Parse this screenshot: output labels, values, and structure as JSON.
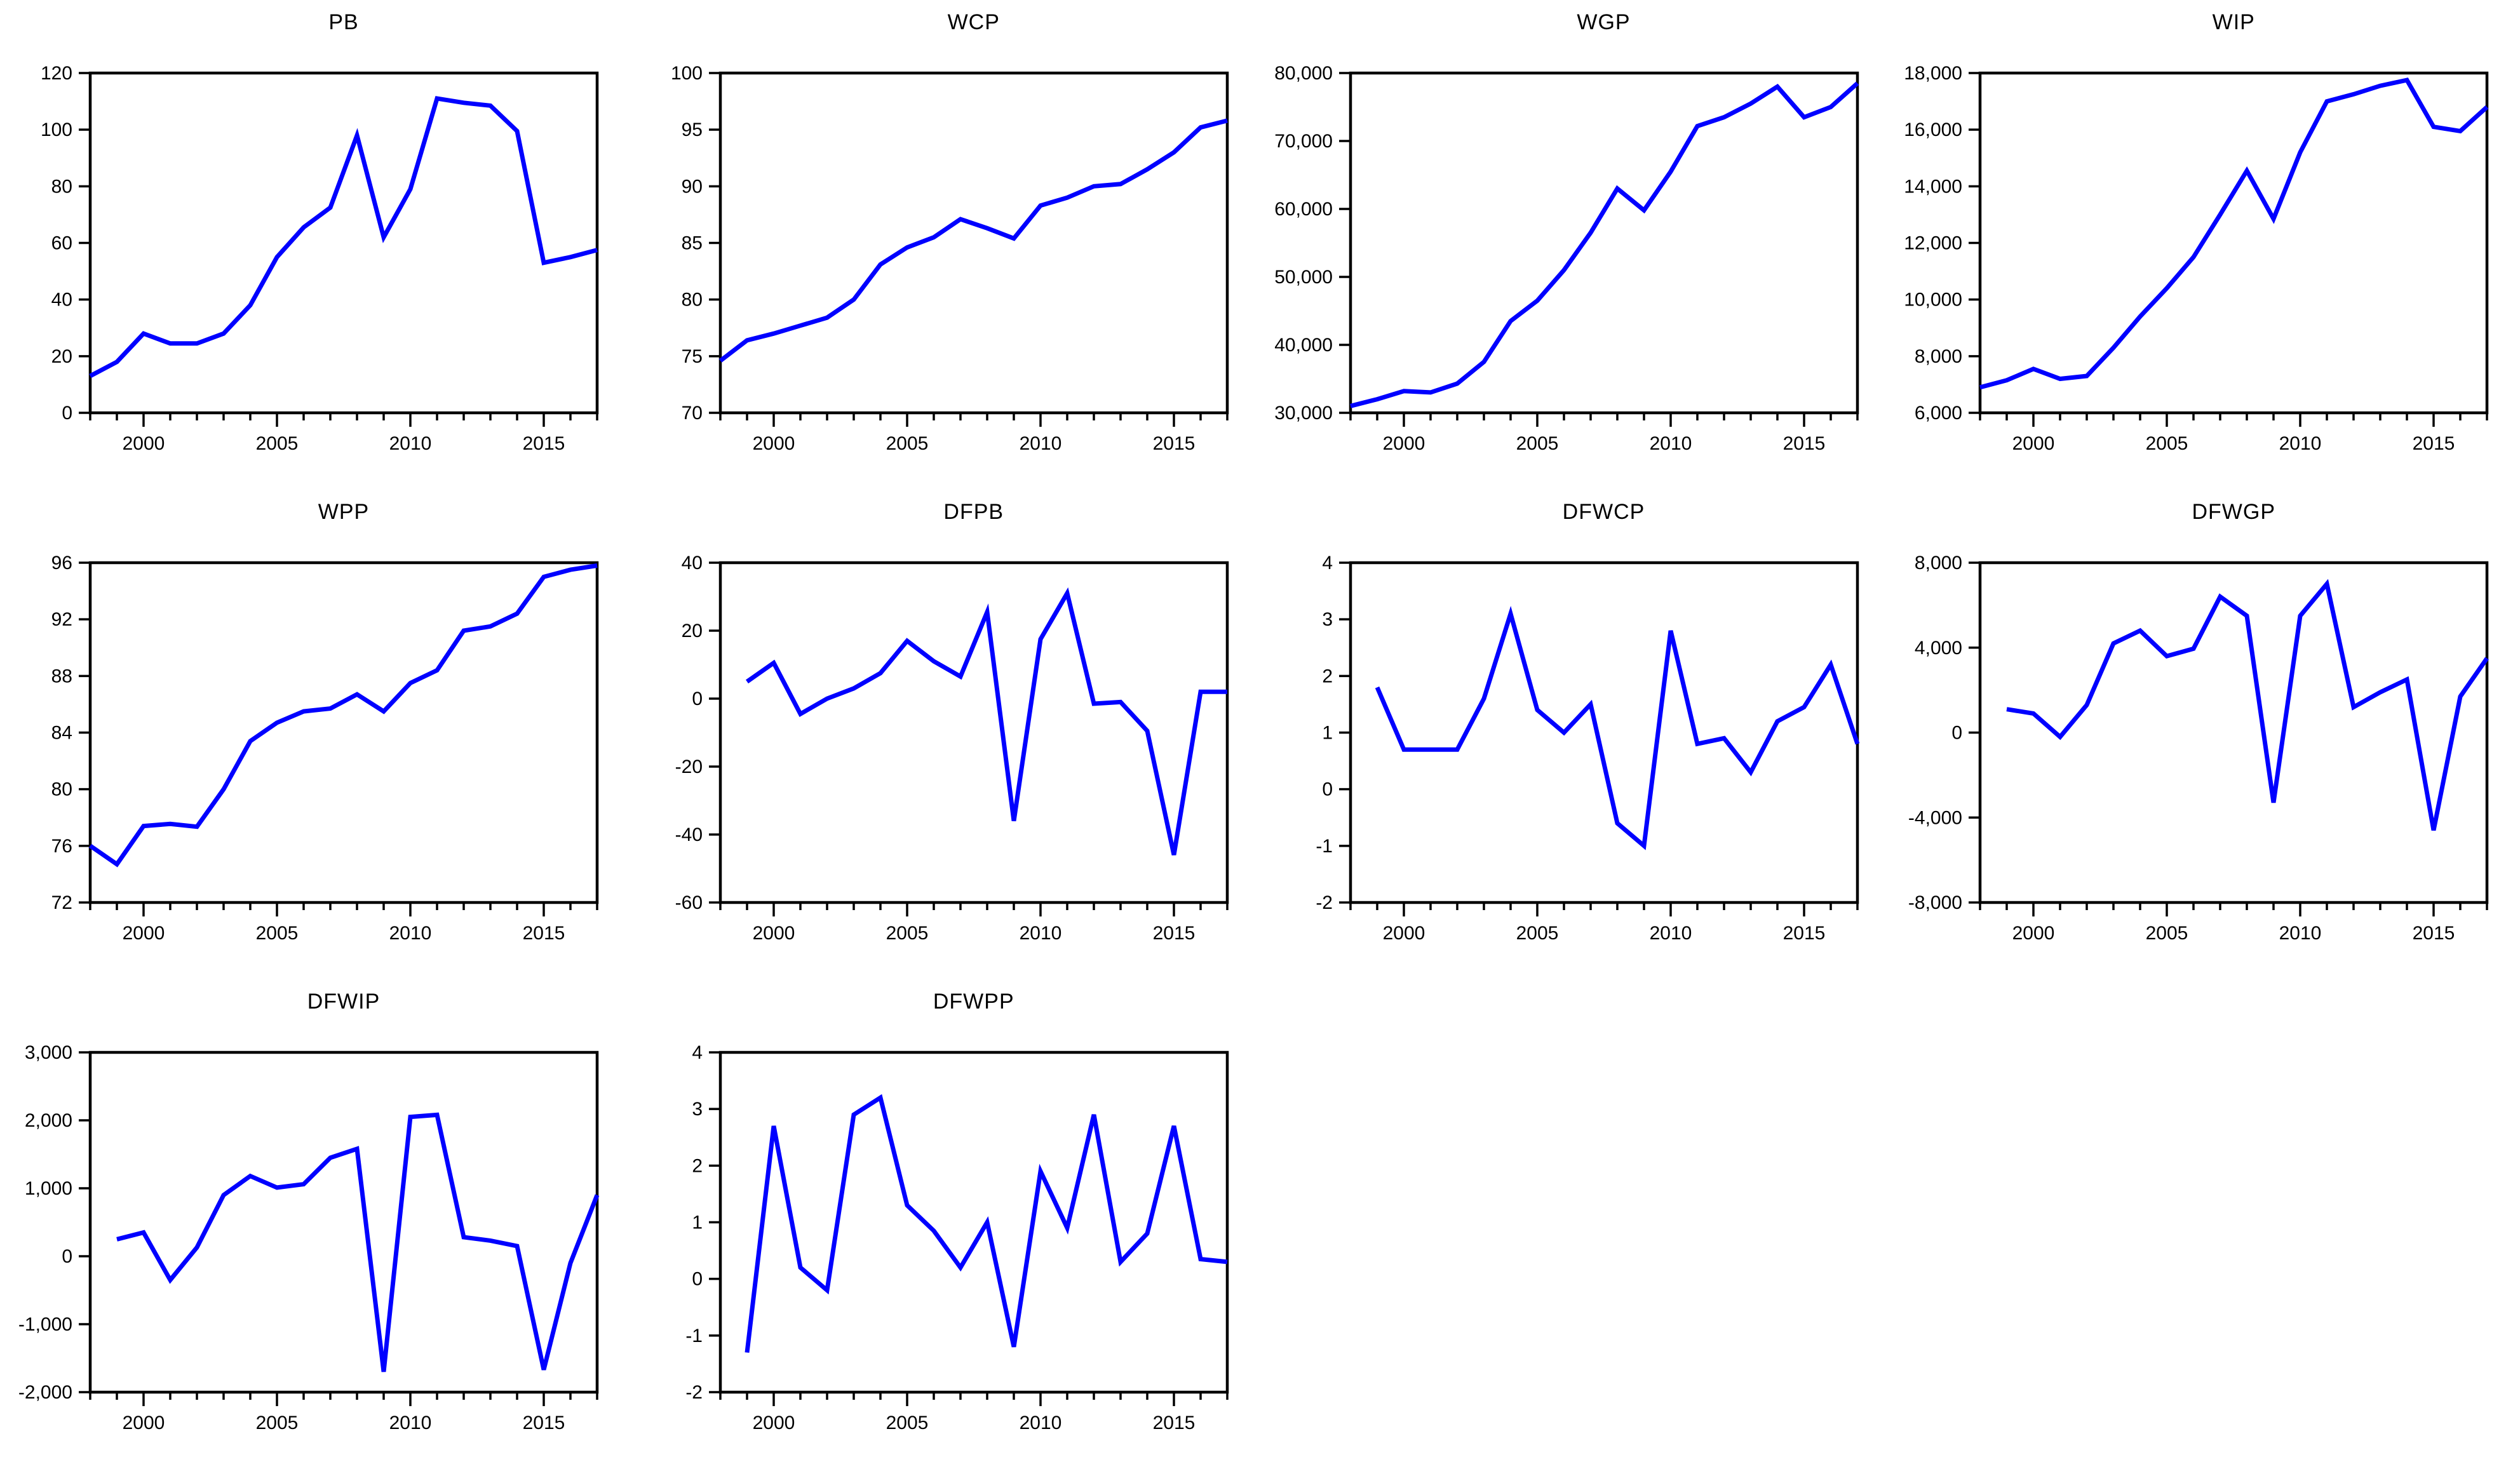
{
  "figure": {
    "background_color": "#ffffff",
    "line_color": "#0000ff",
    "axis_color": "#000000",
    "text_color": "#000000",
    "x_axis_start": 1998,
    "x_axis_end": 2017,
    "x_major_tick_labels": [
      "2000",
      "2005",
      "2010",
      "2015"
    ]
  },
  "chart_data": [
    {
      "type": "line",
      "title": "PB",
      "x_major_ticks": [
        2000,
        2005,
        2010,
        2015
      ],
      "x_tick_labels": [
        "2000",
        "2005",
        "2010",
        "2015"
      ],
      "ylim": [
        0,
        120
      ],
      "y_ticks": [
        0,
        20,
        40,
        60,
        80,
        100,
        120
      ],
      "y_tick_labels": [
        "0",
        "20",
        "40",
        "60",
        "80",
        "100",
        "120"
      ],
      "x": [
        1998,
        1999,
        2000,
        2001,
        2002,
        2003,
        2004,
        2005,
        2006,
        2007,
        2008,
        2009,
        2010,
        2011,
        2012,
        2013,
        2014,
        2015,
        2016,
        2017
      ],
      "values": [
        13,
        18,
        28,
        24.5,
        24.5,
        28,
        38,
        55,
        65.5,
        72.5,
        98,
        62,
        79,
        111,
        109.5,
        108.5,
        99.5,
        53,
        55,
        57.5
      ]
    },
    {
      "type": "line",
      "title": "WCP",
      "x_major_ticks": [
        2000,
        2005,
        2010,
        2015
      ],
      "x_tick_labels": [
        "2000",
        "2005",
        "2010",
        "2015"
      ],
      "ylim": [
        70,
        100
      ],
      "y_ticks": [
        70,
        75,
        80,
        85,
        90,
        95,
        100
      ],
      "y_tick_labels": [
        "70",
        "75",
        "80",
        "85",
        "90",
        "95",
        "100"
      ],
      "x": [
        1998,
        1999,
        2000,
        2001,
        2002,
        2003,
        2004,
        2005,
        2006,
        2007,
        2008,
        2009,
        2010,
        2011,
        2012,
        2013,
        2014,
        2015,
        2016,
        2017
      ],
      "values": [
        74.6,
        76.4,
        77.0,
        77.7,
        78.4,
        80.0,
        83.1,
        84.6,
        85.5,
        87.1,
        86.3,
        85.4,
        88.3,
        89.0,
        90.0,
        90.2,
        91.5,
        93.0,
        95.2,
        95.8
      ]
    },
    {
      "type": "line",
      "title": "WGP",
      "x_major_ticks": [
        2000,
        2005,
        2010,
        2015
      ],
      "x_tick_labels": [
        "2000",
        "2005",
        "2010",
        "2015"
      ],
      "ylim": [
        30000,
        80000
      ],
      "y_ticks": [
        30000,
        40000,
        50000,
        60000,
        70000,
        80000
      ],
      "y_tick_labels": [
        "30,000",
        "40,000",
        "50,000",
        "60,000",
        "70,000",
        "80,000"
      ],
      "x": [
        1998,
        1999,
        2000,
        2001,
        2002,
        2003,
        2004,
        2005,
        2006,
        2007,
        2008,
        2009,
        2010,
        2011,
        2012,
        2013,
        2014,
        2015,
        2016,
        2017
      ],
      "values": [
        31000,
        32000,
        33200,
        33000,
        34300,
        37500,
        43500,
        46500,
        51000,
        56500,
        63000,
        59800,
        65500,
        72200,
        73500,
        75500,
        78000,
        73500,
        75000,
        78500
      ]
    },
    {
      "type": "line",
      "title": "WIP",
      "x_major_ticks": [
        2000,
        2005,
        2010,
        2015
      ],
      "x_tick_labels": [
        "2000",
        "2005",
        "2010",
        "2015"
      ],
      "ylim": [
        6000,
        18000
      ],
      "y_ticks": [
        6000,
        8000,
        10000,
        12000,
        14000,
        16000,
        18000
      ],
      "y_tick_labels": [
        "6,000",
        "8,000",
        "10,000",
        "12,000",
        "14,000",
        "16,000",
        "18,000"
      ],
      "x": [
        1998,
        1999,
        2000,
        2001,
        2002,
        2003,
        2004,
        2005,
        2006,
        2007,
        2008,
        2009,
        2010,
        2011,
        2012,
        2013,
        2014,
        2015,
        2016,
        2017
      ],
      "values": [
        6900,
        7150,
        7550,
        7200,
        7300,
        8300,
        9400,
        10400,
        11500,
        13000,
        14550,
        12850,
        15200,
        17000,
        17250,
        17550,
        17750,
        16100,
        15950,
        16800
      ]
    },
    {
      "type": "line",
      "title": "WPP",
      "x_major_ticks": [
        2000,
        2005,
        2010,
        2015
      ],
      "x_tick_labels": [
        "2000",
        "2005",
        "2010",
        "2015"
      ],
      "ylim": [
        72,
        96
      ],
      "y_ticks": [
        72,
        76,
        80,
        84,
        88,
        92,
        96
      ],
      "y_tick_labels": [
        "72",
        "76",
        "80",
        "84",
        "88",
        "92",
        "96"
      ],
      "x": [
        1998,
        1999,
        2000,
        2001,
        2002,
        2003,
        2004,
        2005,
        2006,
        2007,
        2008,
        2009,
        2010,
        2011,
        2012,
        2013,
        2014,
        2015,
        2016,
        2017
      ],
      "values": [
        76.0,
        74.7,
        77.4,
        77.55,
        77.35,
        80.0,
        83.4,
        84.7,
        85.5,
        85.7,
        86.7,
        85.5,
        87.5,
        88.4,
        91.2,
        91.5,
        92.4,
        95.0,
        95.5,
        95.8
      ]
    },
    {
      "type": "line",
      "title": "DFPB",
      "x_major_ticks": [
        2000,
        2005,
        2010,
        2015
      ],
      "x_tick_labels": [
        "2000",
        "2005",
        "2010",
        "2015"
      ],
      "ylim": [
        -60,
        40
      ],
      "y_ticks": [
        -60,
        -40,
        -20,
        0,
        20,
        40
      ],
      "y_tick_labels": [
        "-60",
        "-40",
        "-20",
        "0",
        "20",
        "40"
      ],
      "x": [
        1999,
        2000,
        2001,
        2002,
        2003,
        2004,
        2005,
        2006,
        2007,
        2008,
        2009,
        2010,
        2011,
        2012,
        2013,
        2014,
        2015,
        2016,
        2017
      ],
      "values": [
        5,
        10.5,
        -4.5,
        0,
        3,
        7.5,
        17,
        11,
        6.5,
        25.5,
        -36,
        17.5,
        31,
        -1.5,
        -1,
        -9.5,
        -46,
        2,
        2
      ]
    },
    {
      "type": "line",
      "title": "DFWCP",
      "x_major_ticks": [
        2000,
        2005,
        2010,
        2015
      ],
      "x_tick_labels": [
        "2000",
        "2005",
        "2010",
        "2015"
      ],
      "ylim": [
        -2,
        4
      ],
      "y_ticks": [
        -2,
        -1,
        0,
        1,
        2,
        3,
        4
      ],
      "y_tick_labels": [
        "-2",
        "-1",
        "0",
        "1",
        "2",
        "3",
        "4"
      ],
      "x": [
        1999,
        2000,
        2001,
        2002,
        2003,
        2004,
        2005,
        2006,
        2007,
        2008,
        2009,
        2010,
        2011,
        2012,
        2013,
        2014,
        2015,
        2016,
        2017
      ],
      "values": [
        1.8,
        0.7,
        0.7,
        0.7,
        1.6,
        3.1,
        1.4,
        1.0,
        1.5,
        -0.6,
        -1.0,
        2.8,
        0.8,
        0.9,
        0.3,
        1.2,
        1.45,
        2.2,
        0.8
      ]
    },
    {
      "type": "line",
      "title": "DFWGP",
      "x_major_ticks": [
        2000,
        2005,
        2010,
        2015
      ],
      "x_tick_labels": [
        "2000",
        "2005",
        "2010",
        "2015"
      ],
      "ylim": [
        -8000,
        8000
      ],
      "y_ticks": [
        -8000,
        -4000,
        0,
        4000,
        8000
      ],
      "y_tick_labels": [
        "-8,000",
        "-4,000",
        "0",
        "4,000",
        "8,000"
      ],
      "x": [
        1999,
        2000,
        2001,
        2002,
        2003,
        2004,
        2005,
        2006,
        2007,
        2008,
        2009,
        2010,
        2011,
        2012,
        2013,
        2014,
        2015,
        2016,
        2017
      ],
      "values": [
        1100,
        900,
        -200,
        1300,
        4200,
        4800,
        3600,
        3950,
        6400,
        5500,
        -3300,
        5500,
        7000,
        1200,
        1900,
        2500,
        -4600,
        1700,
        3500
      ]
    },
    {
      "type": "line",
      "title": "DFWIP",
      "x_major_ticks": [
        2000,
        2005,
        2010,
        2015
      ],
      "x_tick_labels": [
        "2000",
        "2005",
        "2010",
        "2015"
      ],
      "ylim": [
        -2000,
        3000
      ],
      "y_ticks": [
        -2000,
        -1000,
        0,
        1000,
        2000,
        3000
      ],
      "y_tick_labels": [
        "-2,000",
        "-1,000",
        "0",
        "1,000",
        "2,000",
        "3,000"
      ],
      "x": [
        1999,
        2000,
        2001,
        2002,
        2003,
        2004,
        2005,
        2006,
        2007,
        2008,
        2009,
        2010,
        2011,
        2012,
        2013,
        2014,
        2015,
        2016,
        2017
      ],
      "values": [
        250,
        350,
        -350,
        130,
        900,
        1180,
        1010,
        1060,
        1450,
        1580,
        -1700,
        2050,
        2080,
        280,
        230,
        150,
        -1670,
        -100,
        900
      ]
    },
    {
      "type": "line",
      "title": "DFWPP",
      "x_major_ticks": [
        2000,
        2005,
        2010,
        2015
      ],
      "x_tick_labels": [
        "2000",
        "2005",
        "2010",
        "2015"
      ],
      "ylim": [
        -2,
        4
      ],
      "y_ticks": [
        -2,
        -1,
        0,
        1,
        2,
        3,
        4
      ],
      "y_tick_labels": [
        "-2",
        "-1",
        "0",
        "1",
        "2",
        "3",
        "4"
      ],
      "x": [
        1999,
        2000,
        2001,
        2002,
        2003,
        2004,
        2005,
        2006,
        2007,
        2008,
        2009,
        2010,
        2011,
        2012,
        2013,
        2014,
        2015,
        2016,
        2017
      ],
      "values": [
        -1.3,
        2.7,
        0.2,
        -0.2,
        2.9,
        3.2,
        1.3,
        0.85,
        0.2,
        1.0,
        -1.2,
        1.9,
        0.9,
        2.9,
        0.3,
        0.8,
        2.7,
        0.35,
        0.3
      ]
    }
  ]
}
